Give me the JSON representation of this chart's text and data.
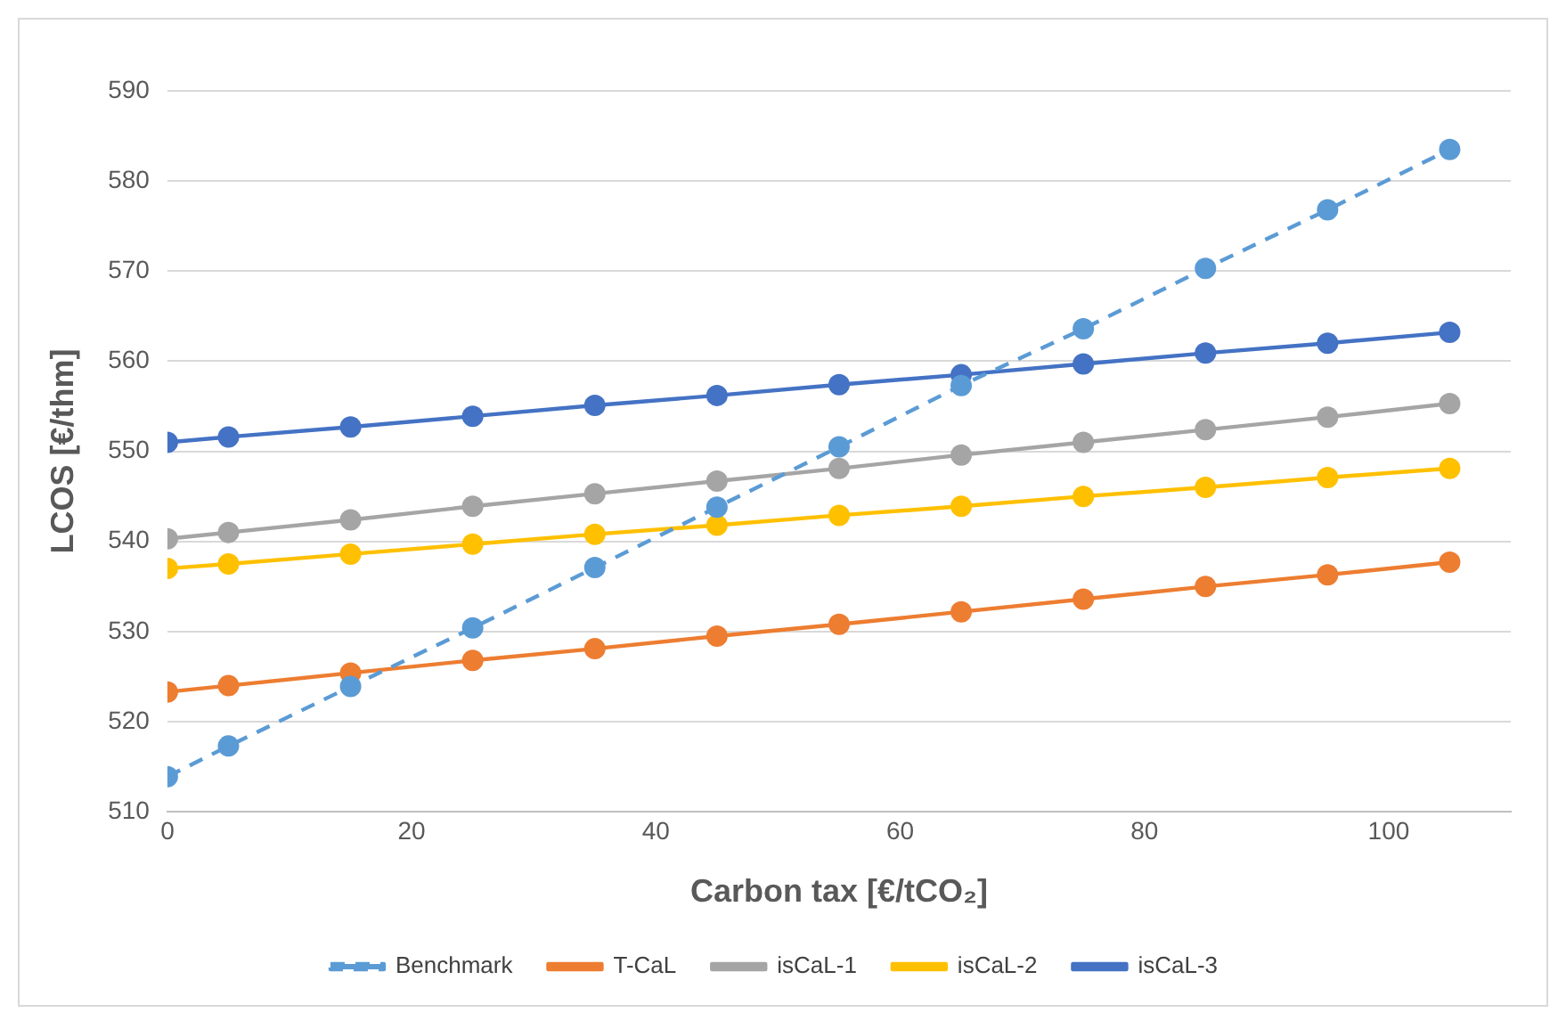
{
  "chart_data": {
    "type": "line",
    "xlabel": "Carbon tax [€/tCO₂]",
    "ylabel": "LCOS [€/thm]",
    "x": [
      0,
      5,
      15,
      25,
      35,
      45,
      55,
      65,
      75,
      85,
      95,
      105
    ],
    "series": [
      {
        "name": "Benchmark",
        "color": "#5b9bd5",
        "line_style": "dashed",
        "values": [
          513.9,
          517.3,
          523.9,
          530.4,
          537.1,
          543.8,
          550.5,
          557.3,
          563.6,
          570.3,
          576.8,
          583.5
        ]
      },
      {
        "name": "T-CaL",
        "color": "#ed7d31",
        "values": [
          523.3,
          524,
          525.4,
          526.8,
          528.1,
          529.5,
          530.8,
          532.2,
          533.6,
          535,
          536.3,
          537.7
        ]
      },
      {
        "name": "isCaL-1",
        "color": "#a5a5a5",
        "values": [
          540.3,
          541,
          542.4,
          543.9,
          545.3,
          546.7,
          548.1,
          549.6,
          551,
          552.4,
          553.8,
          555.3
        ]
      },
      {
        "name": "isCaL-2",
        "color": "#ffc000",
        "values": [
          537,
          537.5,
          538.6,
          539.7,
          540.8,
          541.8,
          542.9,
          543.9,
          545,
          546,
          547.1,
          548.1
        ]
      },
      {
        "name": "isCaL-3",
        "color": "#4472c4",
        "values": [
          551,
          551.6,
          552.7,
          553.9,
          555.1,
          556.2,
          557.4,
          558.5,
          559.7,
          560.9,
          562,
          563.2
        ]
      }
    ],
    "xlim": [
      0,
      110
    ],
    "xticks": [
      0,
      20,
      40,
      60,
      80,
      100
    ],
    "ylim": [
      510,
      590
    ],
    "yticks": [
      510,
      520,
      530,
      540,
      550,
      560,
      570,
      580,
      590
    ],
    "grid": "y",
    "legend": "bottom",
    "marker": "circle",
    "line_style": "solid"
  }
}
